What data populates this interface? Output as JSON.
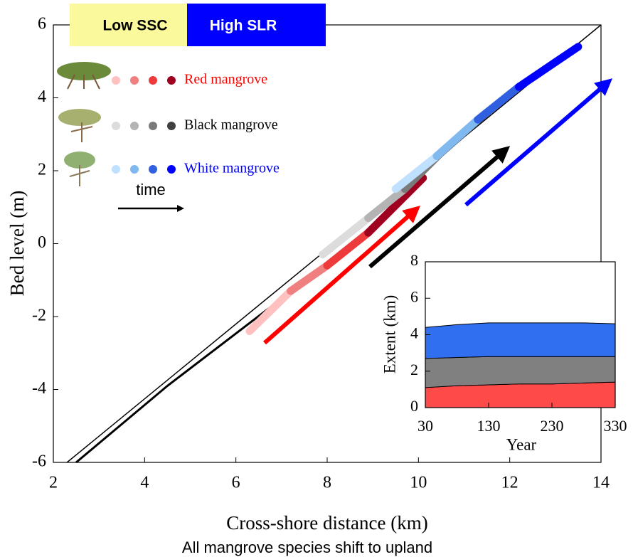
{
  "chart_data": [
    {
      "type": "line",
      "xlabel": "Cross-shore distance (km)",
      "ylabel": "Bed level (m)",
      "xlim": [
        2,
        14
      ],
      "ylim": [
        -6,
        6
      ],
      "xticks": [
        2,
        4,
        6,
        8,
        10,
        12,
        14
      ],
      "yticks": [
        -6,
        -4,
        -2,
        0,
        2,
        4,
        6
      ],
      "series": [
        {
          "color": "#000000",
          "width": 1.5,
          "x": [
            2.3,
            14
          ],
          "values": [
            -6,
            6
          ]
        },
        {
          "color": "#000000",
          "width": 3,
          "x": [
            2.5,
            4.5,
            6.8,
            8.2
          ],
          "values": [
            -6,
            -3.9,
            -1.7,
            -0.5
          ]
        },
        {
          "name": "Red mangrove",
          "label_color": "#ff0000",
          "colors": [
            "#ffc0c0",
            "#f08080",
            "#ee3a3a",
            "#a00020"
          ],
          "x": [
            6.3,
            7.2,
            8.0,
            8.9,
            10.1
          ],
          "values": [
            -2.4,
            -1.3,
            -0.6,
            0.3,
            1.8
          ]
        },
        {
          "name": "Black mangrove",
          "label_color": "#000000",
          "colors": [
            "#dcdcdc",
            "#b4b4b4",
            "#7a7a7a",
            "#404040"
          ],
          "x": [
            7.9,
            8.9,
            9.7,
            10.5,
            11.5
          ],
          "values": [
            -0.3,
            0.7,
            1.5,
            2.5,
            3.6
          ]
        },
        {
          "name": "White mangrove",
          "label_color": "#0000ff",
          "colors": [
            "#c0e0ff",
            "#80b8f0",
            "#3060e0",
            "#0000ff"
          ],
          "x": [
            9.5,
            10.4,
            11.3,
            12.2,
            13.5
          ],
          "values": [
            1.5,
            2.4,
            3.4,
            4.3,
            5.4
          ]
        }
      ],
      "annotations": {
        "low_ssc": "Low SSC",
        "high_slr": "High SLR",
        "time": "time",
        "caption": "All mangrove species shift to upland"
      }
    },
    {
      "type": "area",
      "stacked": true,
      "xlabel": "Year",
      "ylabel": "Extent (km)",
      "xlim": [
        30,
        330
      ],
      "ylim": [
        0,
        8
      ],
      "xticks": [
        30,
        130,
        230,
        330
      ],
      "yticks": [
        0,
        2,
        4,
        6,
        8
      ],
      "x": [
        30,
        80,
        130,
        180,
        230,
        280,
        330
      ],
      "series": [
        {
          "color": "#ff4a4a",
          "values": [
            1.1,
            1.2,
            1.25,
            1.3,
            1.3,
            1.35,
            1.4
          ]
        },
        {
          "color": "#808080",
          "values": [
            1.6,
            1.55,
            1.55,
            1.5,
            1.5,
            1.45,
            1.4
          ]
        },
        {
          "color": "#3070f0",
          "values": [
            1.7,
            1.8,
            1.85,
            1.85,
            1.85,
            1.85,
            1.8
          ]
        }
      ]
    }
  ]
}
